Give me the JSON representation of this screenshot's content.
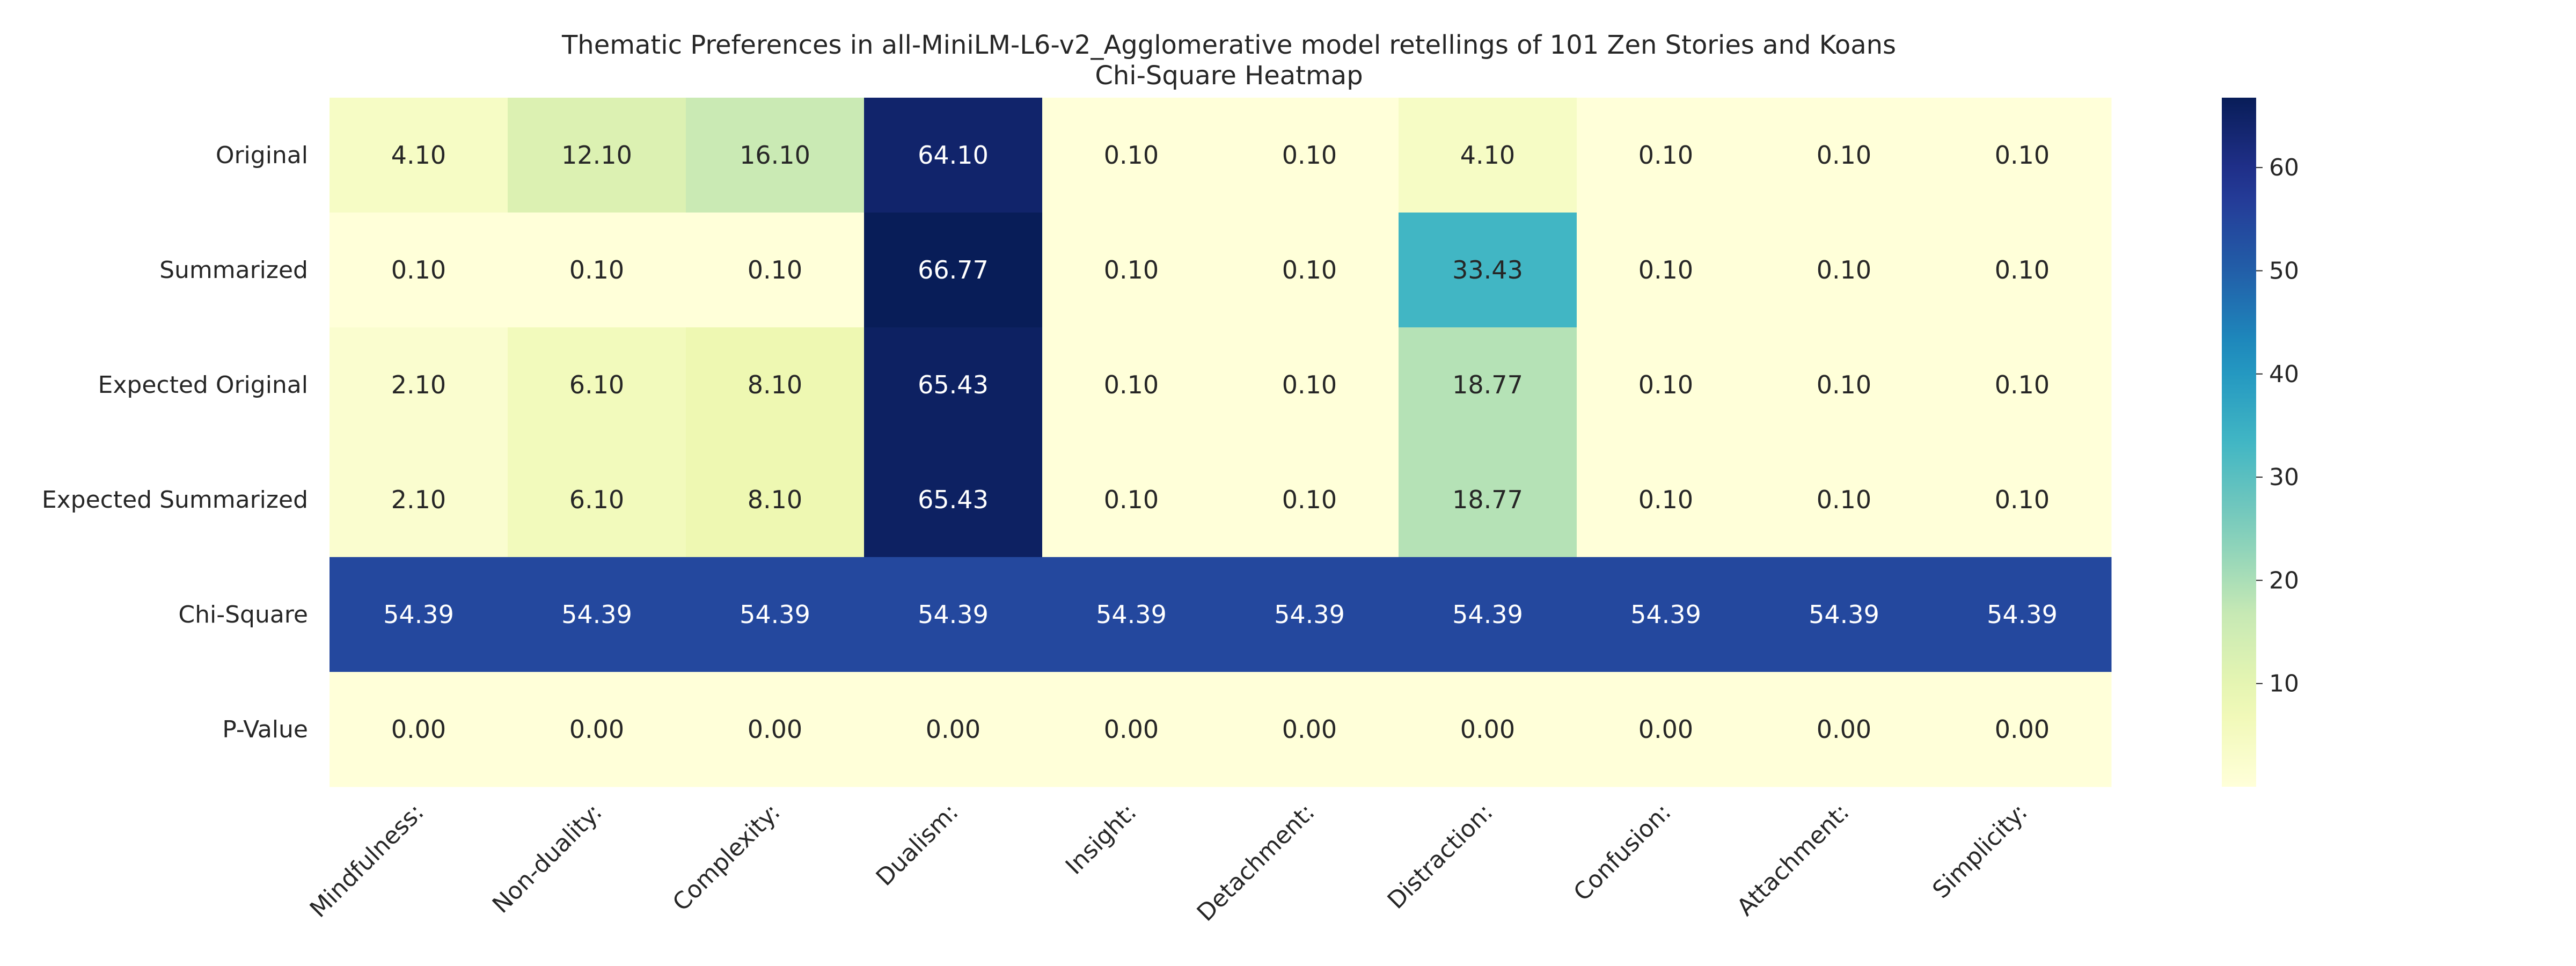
{
  "chart_data": {
    "type": "heatmap",
    "title": "Thematic Preferences in all-MiniLM-L6-v2_Agglomerative model retellings of 101 Zen Stories and Koans",
    "subtitle": "Chi-Square Heatmap",
    "rows": [
      "Original",
      "Summarized",
      "Expected Original",
      "Expected Summarized",
      "Chi-Square",
      "P-Value"
    ],
    "columns": [
      "Mindfulness:",
      "Non-duality:",
      "Complexity:",
      "Dualism:",
      "Insight:",
      "Detachment:",
      "Distraction:",
      "Confusion:",
      "Attachment:",
      "Simplicity:"
    ],
    "values": [
      [
        4.1,
        12.1,
        16.1,
        64.1,
        0.1,
        0.1,
        4.1,
        0.1,
        0.1,
        0.1
      ],
      [
        0.1,
        0.1,
        0.1,
        66.77,
        0.1,
        0.1,
        33.43,
        0.1,
        0.1,
        0.1
      ],
      [
        2.1,
        6.1,
        8.1,
        65.43,
        0.1,
        0.1,
        18.77,
        0.1,
        0.1,
        0.1
      ],
      [
        2.1,
        6.1,
        8.1,
        65.43,
        0.1,
        0.1,
        18.77,
        0.1,
        0.1,
        0.1
      ],
      [
        54.39,
        54.39,
        54.39,
        54.39,
        54.39,
        54.39,
        54.39,
        54.39,
        54.39,
        54.39
      ],
      [
        0.0,
        0.0,
        0.0,
        0.0,
        0.0,
        0.0,
        0.0,
        0.0,
        0.0,
        0.0
      ]
    ],
    "value_format": "2 decimals",
    "colormap": "YlGnBu",
    "colorbar": {
      "range": [
        0,
        66.77
      ],
      "ticks": [
        10,
        20,
        30,
        40,
        50,
        60
      ]
    }
  }
}
